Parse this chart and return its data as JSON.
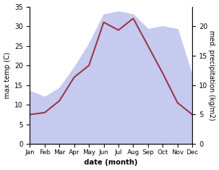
{
  "months": [
    "Jan",
    "Feb",
    "Mar",
    "Apr",
    "May",
    "Jun",
    "Jul",
    "Aug",
    "Sep",
    "Oct",
    "Nov",
    "Dec"
  ],
  "temperature": [
    7.5,
    8.0,
    11.0,
    17.0,
    20.0,
    31.0,
    29.0,
    32.0,
    25.0,
    18.0,
    10.5,
    7.5
  ],
  "precipitation": [
    9.0,
    8.0,
    9.5,
    13.0,
    17.0,
    22.0,
    22.5,
    22.0,
    19.5,
    20.0,
    19.5,
    11.5
  ],
  "temp_color": "#993344",
  "precip_fill_color": "#c5caee",
  "temp_ylim": [
    0,
    35
  ],
  "precip_ylim": [
    0,
    23.33
  ],
  "temp_yticks": [
    0,
    5,
    10,
    15,
    20,
    25,
    30,
    35
  ],
  "precip_yticks": [
    0,
    5,
    10,
    15,
    20
  ],
  "xlabel": "date (month)",
  "ylabel_left": "max temp (C)",
  "ylabel_right": "med. precipitation (kg/m2)",
  "background_color": "#ffffff"
}
